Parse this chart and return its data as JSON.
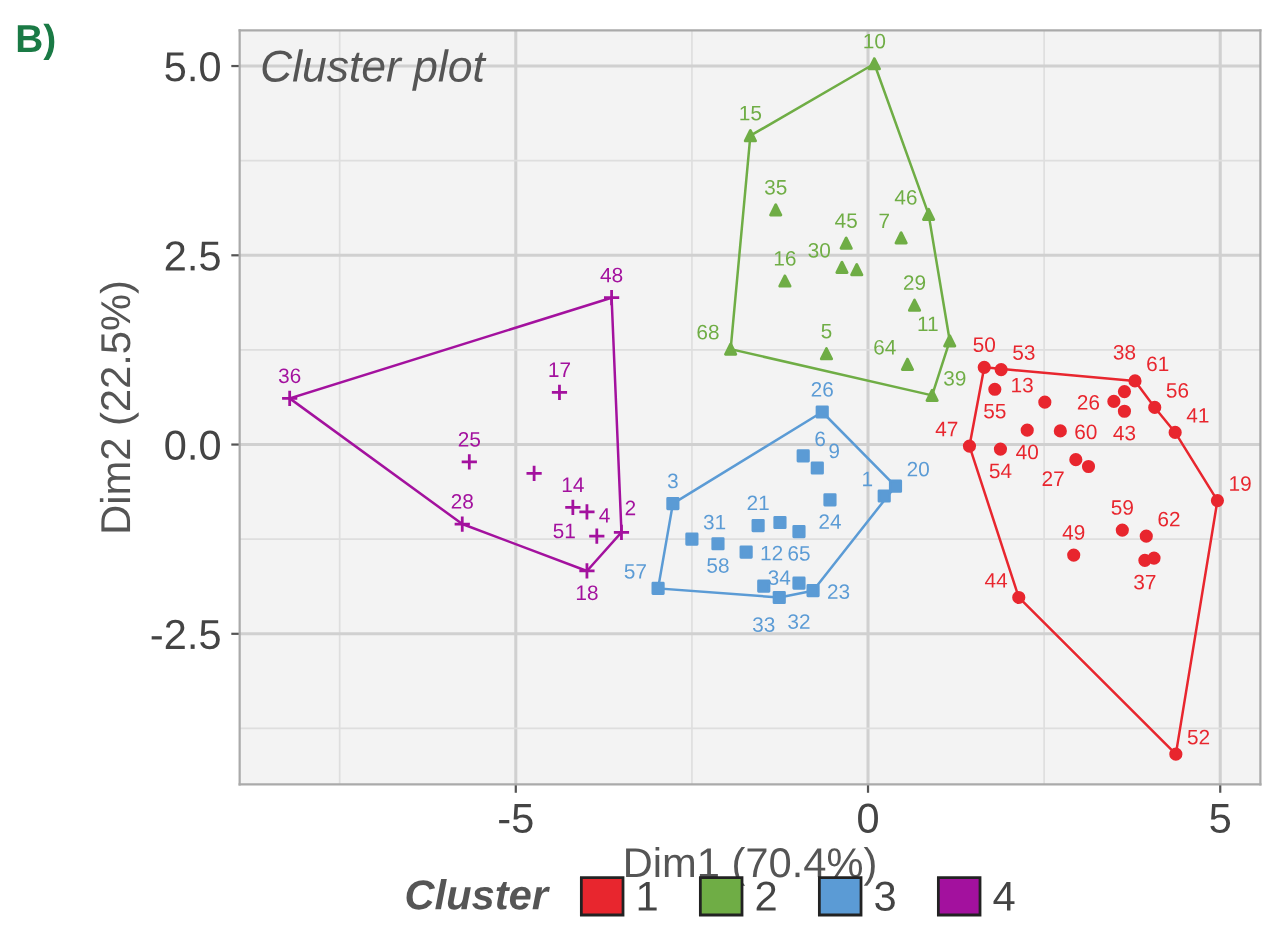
{
  "chart_data": {
    "type": "scatter",
    "title": "Cluster plot",
    "xlabel": "Dim1 (70.4%)",
    "ylabel": "Dim2 (22.5%)",
    "legend_title": "Cluster",
    "xlim": [
      -8.92,
      5.57
    ],
    "ylim": [
      -4.49,
      5.47
    ],
    "xticks": [
      -5,
      0,
      5
    ],
    "yticks": [
      {
        "value": 5,
        "label": "5.0"
      },
      {
        "value": 2.5,
        "label": "2.5"
      },
      {
        "value": 0,
        "label": "0.0"
      },
      {
        "value": -2.5,
        "label": "-2.5"
      }
    ],
    "grid": true,
    "legend": "bottom",
    "series": [
      {
        "name": "1",
        "color": "#e8262e",
        "marker": "circle",
        "x": [
          1.65,
          1.89,
          1.8,
          2.51,
          3.64,
          3.79,
          3.49,
          3.64,
          4.07,
          2.26,
          2.73,
          1.44,
          1.88,
          4.36,
          2.95,
          3.13,
          4.96,
          3.61,
          3.95,
          3.93,
          4.06,
          2.92,
          2.14,
          4.37
        ],
        "values": [
          1.02,
          0.99,
          0.73,
          0.56,
          0.7,
          0.84,
          0.57,
          0.44,
          0.49,
          0.19,
          0.18,
          -0.02,
          -0.06,
          0.16,
          -0.2,
          -0.29,
          -0.74,
          -1.13,
          -1.21,
          -1.53,
          -1.5,
          -1.46,
          -2.02,
          -4.09
        ]
      },
      {
        "name": "2",
        "color": "#6fad45",
        "marker": "triangle",
        "x": [
          0.09,
          -1.67,
          -1.31,
          0.86,
          -0.31,
          0.47,
          -0.37,
          -0.16,
          -1.18,
          0.66,
          -1.95,
          -0.59,
          1.16,
          0.56,
          0.91
        ],
        "values": [
          5.03,
          4.08,
          3.1,
          3.04,
          2.66,
          2.73,
          2.34,
          2.31,
          2.16,
          1.84,
          1.26,
          1.2,
          1.37,
          1.06,
          0.65
        ]
      },
      {
        "name": "3",
        "color": "#5b9bd5",
        "marker": "square",
        "x": [
          -0.65,
          -0.92,
          -0.72,
          0.39,
          0.23,
          -0.54,
          -2.77,
          -1.56,
          -1.25,
          -0.98,
          -2.5,
          -2.13,
          -1.73,
          -2.98,
          -1.48,
          -0.98,
          -0.78,
          -1.26
        ],
        "values": [
          0.43,
          -0.15,
          -0.31,
          -0.55,
          -0.68,
          -0.73,
          -0.78,
          -1.07,
          -1.03,
          -1.15,
          -1.25,
          -1.31,
          -1.42,
          -1.9,
          -1.87,
          -1.83,
          -1.93,
          -2.02
        ]
      },
      {
        "name": "4",
        "color": "#a3119e",
        "marker": "cross",
        "x": [
          -8.21,
          -3.64,
          -4.38,
          -5.66,
          -4.74,
          -4.19,
          -3.99,
          -3.85,
          -3.5,
          -5.76,
          -3.99
        ],
        "values": [
          0.61,
          1.94,
          0.69,
          -0.23,
          -0.38,
          -0.83,
          -0.89,
          -1.21,
          -1.16,
          -1.05,
          -1.67
        ]
      },
      {
        "type": "line",
        "color": "#e8262e",
        "x": [
          1.44,
          1.65,
          3.79,
          4.07,
          4.36,
          4.96
        ],
        "values": [
          -0.02,
          1.02,
          0.84,
          0.49,
          0.16,
          -0.74
        ]
      },
      {
        "type": "line",
        "color": "#e8262e",
        "x": [
          1.44,
          2.14,
          4.37,
          4.96
        ],
        "values": [
          -0.02,
          -2.02,
          -4.09,
          -0.74
        ]
      },
      {
        "type": "line",
        "color": "#6fad45",
        "x": [
          -1.95,
          -1.67,
          0.09,
          0.86,
          1.16
        ],
        "values": [
          1.26,
          4.08,
          5.03,
          3.04,
          1.37
        ]
      },
      {
        "type": "line",
        "color": "#6fad45",
        "x": [
          -1.95,
          0.91,
          1.16
        ],
        "values": [
          1.26,
          0.65,
          1.37
        ]
      },
      {
        "type": "line",
        "color": "#5b9bd5",
        "x": [
          -2.98,
          -2.77,
          -0.65,
          0.39
        ],
        "values": [
          -1.9,
          -0.78,
          0.43,
          -0.55
        ]
      },
      {
        "type": "line",
        "color": "#5b9bd5",
        "x": [
          -2.98,
          -1.26,
          -0.78,
          0.39
        ],
        "values": [
          -1.9,
          -2.02,
          -1.93,
          -0.55
        ]
      },
      {
        "type": "line",
        "color": "#a3119e",
        "x": [
          -8.21,
          -3.64,
          -3.5
        ],
        "values": [
          0.61,
          1.94,
          -1.16
        ]
      },
      {
        "type": "line",
        "color": "#a3119e",
        "x": [
          -8.21,
          -5.76,
          -3.99,
          -3.5
        ],
        "values": [
          0.61,
          -1.05,
          -1.67,
          -1.16
        ]
      }
    ],
    "annotations": [
      "B)",
      {
        "text": "50",
        "x": 1.65,
        "y": 1.02
      },
      {
        "text": "53",
        "x": 1.89,
        "y": 0.99
      },
      {
        "text": "55",
        "x": 1.8,
        "y": 0.73
      },
      {
        "text": "13",
        "x": 2.51,
        "y": 0.56
      },
      {
        "text": "38",
        "x": 3.64,
        "y": 0.7
      },
      {
        "text": "61",
        "x": 3.79,
        "y": 0.84
      },
      {
        "text": "26",
        "x": 3.49,
        "y": 0.57
      },
      {
        "text": "43",
        "x": 3.64,
        "y": 0.44
      },
      {
        "text": "56",
        "x": 4.07,
        "y": 0.49
      },
      {
        "text": "40",
        "x": 2.26,
        "y": 0.19
      },
      {
        "text": "60",
        "x": 2.73,
        "y": 0.18
      },
      {
        "text": "47",
        "x": 1.44,
        "y": -0.02
      },
      {
        "text": "54",
        "x": 1.88,
        "y": -0.06
      },
      {
        "text": "41",
        "x": 4.36,
        "y": 0.16
      },
      {
        "text": "27",
        "x": 2.95,
        "y": -0.2
      },
      {
        "text": "19",
        "x": 4.96,
        "y": -0.74
      },
      {
        "text": "59",
        "x": 3.61,
        "y": -1.13
      },
      {
        "text": "62",
        "x": 3.95,
        "y": -1.21
      },
      {
        "text": "37",
        "x": 3.93,
        "y": -1.53
      },
      {
        "text": "49",
        "x": 2.92,
        "y": -1.46
      },
      {
        "text": "44",
        "x": 2.14,
        "y": -2.02
      },
      {
        "text": "52",
        "x": 4.37,
        "y": -4.09
      },
      {
        "text": "10",
        "x": 0.09,
        "y": 5.03
      },
      {
        "text": "15",
        "x": -1.67,
        "y": 4.08
      },
      {
        "text": "35",
        "x": -1.31,
        "y": 3.1
      },
      {
        "text": "46",
        "x": 0.86,
        "y": 3.04
      },
      {
        "text": "45",
        "x": -0.31,
        "y": 2.66
      },
      {
        "text": "7",
        "x": 0.47,
        "y": 2.73
      },
      {
        "text": "30",
        "x": -0.37,
        "y": 2.34
      },
      {
        "text": "16",
        "x": -1.18,
        "y": 2.16
      },
      {
        "text": "29",
        "x": 0.66,
        "y": 1.84
      },
      {
        "text": "68",
        "x": -1.95,
        "y": 1.26
      },
      {
        "text": "5",
        "x": -0.59,
        "y": 1.2
      },
      {
        "text": "11",
        "x": 1.16,
        "y": 1.37
      },
      {
        "text": "64",
        "x": 0.56,
        "y": 1.06
      },
      {
        "text": "39",
        "x": 0.91,
        "y": 0.65
      },
      {
        "text": "26",
        "x": -0.65,
        "y": 0.43
      },
      {
        "text": "6",
        "x": -0.92,
        "y": -0.15
      },
      {
        "text": "9",
        "x": -0.72,
        "y": -0.31
      },
      {
        "text": "20",
        "x": 0.39,
        "y": -0.55
      },
      {
        "text": "1",
        "x": 0.23,
        "y": -0.68
      },
      {
        "text": "24",
        "x": -0.54,
        "y": -0.73
      },
      {
        "text": "3",
        "x": -2.77,
        "y": -0.78
      },
      {
        "text": "21",
        "x": -1.56,
        "y": -1.07
      },
      {
        "text": "65",
        "x": -0.98,
        "y": -1.15
      },
      {
        "text": "31",
        "x": -2.5,
        "y": -1.25
      },
      {
        "text": "58",
        "x": -2.13,
        "y": -1.31
      },
      {
        "text": "12",
        "x": -1.73,
        "y": -1.42
      },
      {
        "text": "57",
        "x": -2.98,
        "y": -1.9
      },
      {
        "text": "33",
        "x": -1.48,
        "y": -1.87
      },
      {
        "text": "32",
        "x": -0.98,
        "y": -1.83
      },
      {
        "text": "23",
        "x": -0.78,
        "y": -1.93
      },
      {
        "text": "34",
        "x": -1.26,
        "y": -2.02
      },
      {
        "text": "36",
        "x": -8.21,
        "y": 0.61
      },
      {
        "text": "48",
        "x": -3.64,
        "y": 1.94
      },
      {
        "text": "17",
        "x": -4.38,
        "y": 0.69
      },
      {
        "text": "25",
        "x": -5.66,
        "y": -0.23
      },
      {
        "text": "14",
        "x": -4.19,
        "y": -0.83
      },
      {
        "text": "51",
        "x": -3.99,
        "y": -0.89
      },
      {
        "text": "2",
        "x": -3.85,
        "y": -1.21
      },
      {
        "text": "4",
        "x": -3.5,
        "y": -1.16
      },
      {
        "text": "28",
        "x": -5.76,
        "y": -1.05
      },
      {
        "text": "18",
        "x": -3.99,
        "y": -1.67
      }
    ]
  }
}
